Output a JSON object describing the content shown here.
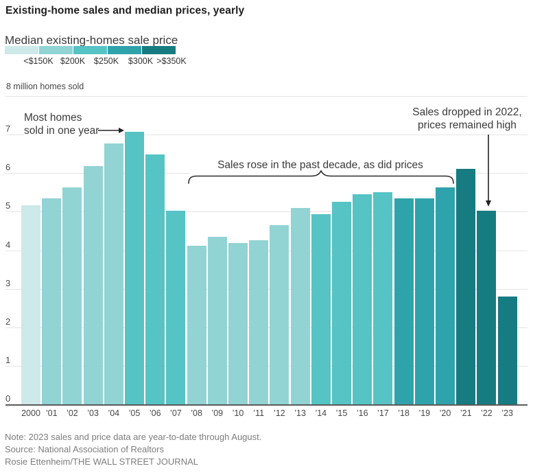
{
  "title": "Existing-home sales and median prices, yearly",
  "legend": {
    "title": "Median existing-homes sale price",
    "bins": [
      {
        "label": "<$150K",
        "color": "#cde9e9"
      },
      {
        "label": "$200K",
        "color": "#92d3d4"
      },
      {
        "label": "$250K",
        "color": "#56c3c5"
      },
      {
        "label": "$300K",
        "color": "#2fa3ab"
      },
      {
        "label": ">$350K",
        "color": "#177b82"
      }
    ]
  },
  "axis": {
    "unit_label": "8 million homes sold",
    "y_ticks": [
      7,
      6,
      5,
      4,
      3,
      2,
      1,
      0
    ]
  },
  "annotations": {
    "peak_line1": "Most homes",
    "peak_line2": "sold in one year",
    "decade_text": "Sales rose in the past decade, as did prices",
    "drop_line1": "Sales dropped in 2022,",
    "drop_line2": "prices remained high"
  },
  "chart_data": {
    "type": "bar",
    "title": "Existing-home sales and median prices, yearly",
    "ylabel": "million homes sold",
    "ylim": [
      0,
      8
    ],
    "grid": true,
    "legend_position": "top-left",
    "categories": [
      "2000",
      "’01",
      "’02",
      "’03",
      "’04",
      "’05",
      "’06",
      "’07",
      "’08",
      "’09",
      "’10",
      "’11",
      "’12",
      "’13",
      "’14",
      "’15",
      "’16",
      "’17",
      "’18",
      "’19",
      "’20",
      "’21",
      "’22",
      "’23"
    ],
    "values": [
      5.17,
      5.34,
      5.63,
      6.18,
      6.78,
      7.08,
      6.48,
      5.03,
      4.12,
      4.34,
      4.19,
      4.26,
      4.66,
      5.09,
      4.94,
      5.25,
      5.45,
      5.51,
      5.34,
      5.34,
      5.64,
      6.12,
      5.03,
      2.8
    ],
    "price_bin_index": [
      0,
      1,
      1,
      1,
      1,
      2,
      2,
      2,
      1,
      1,
      1,
      1,
      1,
      1,
      2,
      2,
      2,
      2,
      3,
      3,
      3,
      4,
      4,
      4
    ],
    "price_bin_labels": [
      "<$150K",
      "$200K",
      "$250K",
      "$300K",
      ">$350K"
    ]
  },
  "footer": {
    "note": "Note: 2023 sales and price data are year-to-date through August.",
    "source": "Source: National Association of Realtors",
    "credit": "Rosie Ettenheim/THE WALL STREET JOURNAL"
  }
}
